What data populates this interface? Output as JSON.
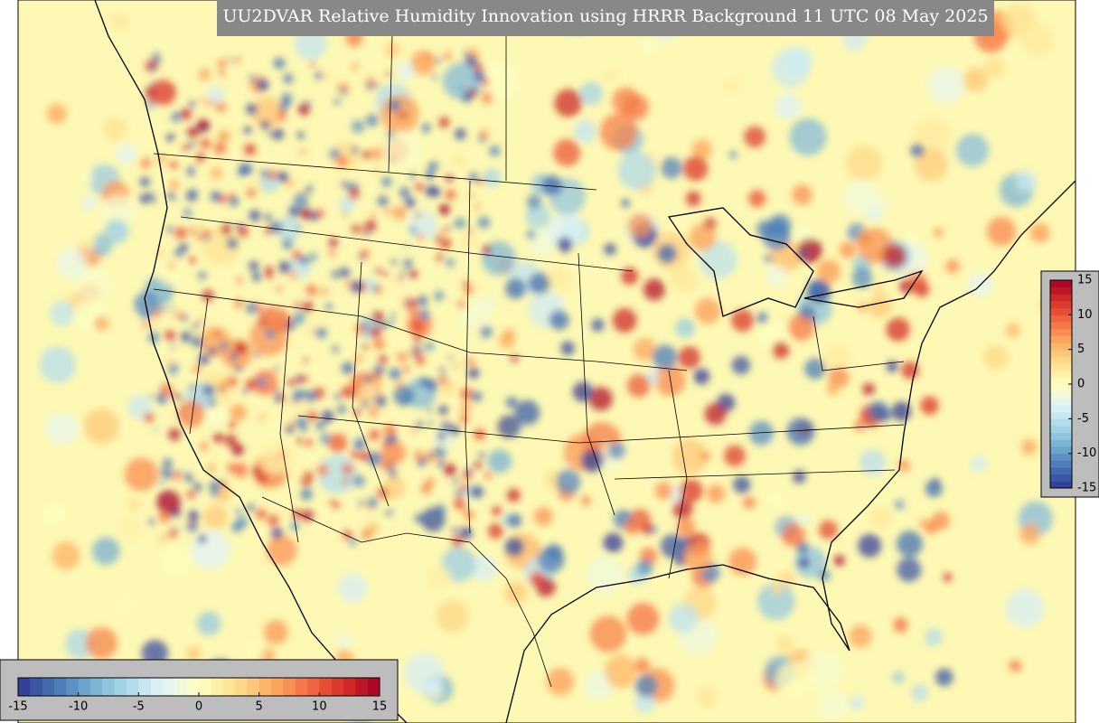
{
  "title": "UU2DVAR Relative Humidity Innovation using HRRR Background 11 UTC 08 May 2025",
  "colormap": [
    "#313695",
    "#4575b4",
    "#74add1",
    "#abd9e9",
    "#e0f3f8",
    "#ffffbf",
    "#fee090",
    "#fdae61",
    "#f46d43",
    "#d73027",
    "#a50026"
  ],
  "colorbar_bottom": {
    "range": [
      -15,
      15
    ],
    "ticks": [
      -15,
      -10,
      -5,
      0,
      5,
      10,
      15
    ]
  },
  "colorbar_right": {
    "range": [
      -15,
      15
    ],
    "ticks": [
      -15,
      -10,
      -5,
      0,
      5,
      10,
      15
    ]
  }
}
